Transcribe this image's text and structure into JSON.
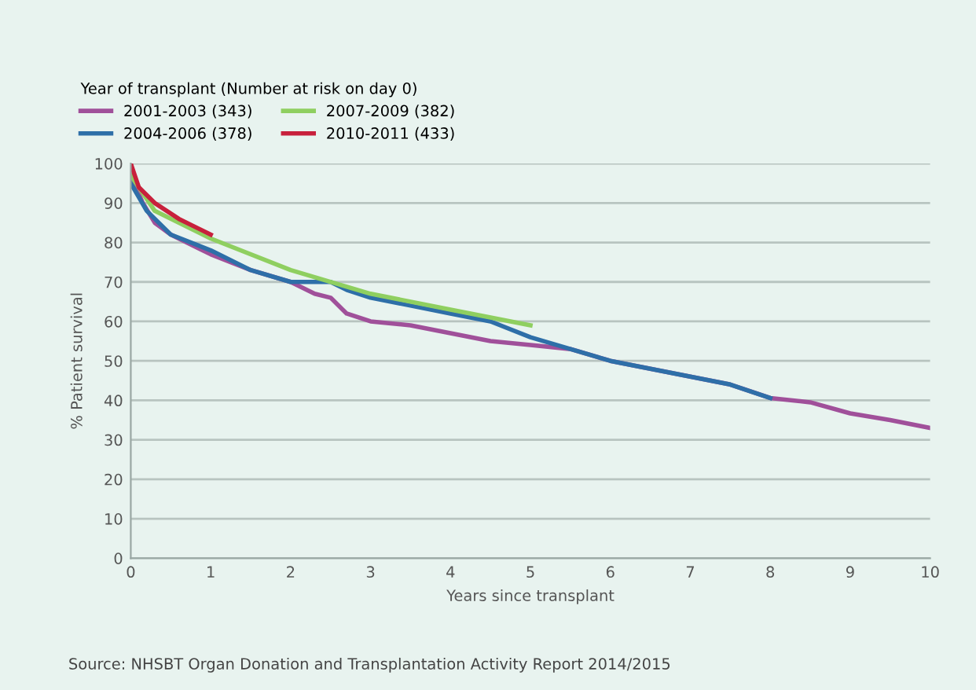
{
  "chart_data": {
    "type": "line",
    "legend_title": "Year of transplant (Number at risk on day 0)",
    "xlabel": "Years since transplant",
    "ylabel": "% Patient survival",
    "annotations": [
      "Source: NHSBT Organ Donation and Transplantation Activity Report 2014/2015"
    ],
    "xlim": [
      0,
      10
    ],
    "xticks": [
      0,
      1,
      2,
      3,
      4,
      5,
      6,
      7,
      8,
      9,
      10
    ],
    "ylim": [
      0,
      100
    ],
    "yticks": [
      0,
      10,
      20,
      30,
      40,
      50,
      60,
      70,
      80,
      90,
      100
    ],
    "grid": "y",
    "legend": "top left",
    "marker": "none",
    "line_style": "solid",
    "series": [
      {
        "name": "2001-2003 (343)",
        "color": "#a0509a",
        "x": [
          0,
          0.15,
          0.3,
          0.5,
          1,
          1.5,
          2,
          2.3,
          2.5,
          2.7,
          3,
          3.5,
          4,
          4.5,
          5,
          5.5,
          6,
          6.5,
          7,
          7.5,
          8,
          8.5,
          9,
          9.5,
          10
        ],
        "values": [
          97,
          90,
          85,
          82,
          77,
          73,
          70,
          67,
          66,
          62,
          60,
          59,
          57,
          55,
          54,
          53,
          50,
          48,
          46,
          44,
          40.6,
          39.5,
          36.7,
          35,
          33
        ]
      },
      {
        "name": "2004-2006 (378)",
        "color": "#2e6fa8",
        "x": [
          0,
          0.2,
          0.5,
          1,
          1.5,
          2,
          2.5,
          2.7,
          3,
          3.5,
          4,
          4.5,
          5,
          5.5,
          6,
          6.5,
          7,
          7.5,
          8
        ],
        "values": [
          95,
          88,
          82,
          78,
          73,
          70,
          70,
          68,
          66,
          64,
          62,
          60,
          56,
          53,
          50,
          48,
          46,
          44,
          40.6
        ]
      },
      {
        "name": "2007-2009 (382)",
        "color": "#8fcf60",
        "x": [
          0,
          0.3,
          1,
          2,
          3,
          4,
          5
        ],
        "values": [
          97,
          88,
          81,
          73,
          67,
          63,
          59
        ]
      },
      {
        "name": "2010-2011 (433)",
        "color": "#c8203c",
        "x": [
          0,
          0.1,
          0.3,
          0.6,
          1
        ],
        "values": [
          100,
          94,
          90,
          86,
          82
        ]
      }
    ]
  }
}
